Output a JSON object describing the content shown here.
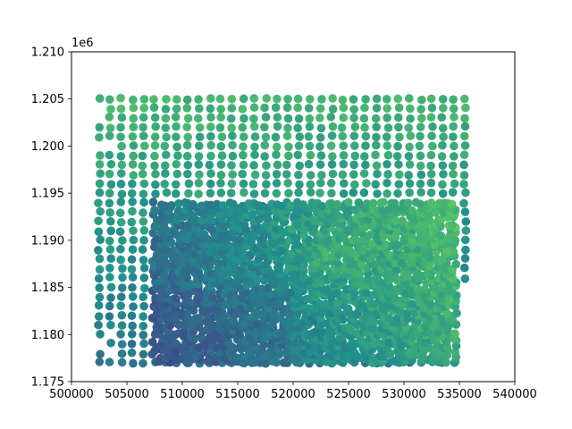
{
  "chart_data": {
    "type": "scatter",
    "title": "",
    "xlabel": "",
    "ylabel": "",
    "xlim": [
      500000,
      540000
    ],
    "ylim": [
      1175000,
      1210000
    ],
    "y_offset_label": "1e6",
    "x_ticks": [
      500000,
      505000,
      510000,
      515000,
      520000,
      525000,
      530000,
      535000,
      540000
    ],
    "x_tick_labels": [
      "500000",
      "505000",
      "510000",
      "515000",
      "520000",
      "525000",
      "530000",
      "535000",
      "540000"
    ],
    "y_ticks": [
      1175000,
      1180000,
      1185000,
      1190000,
      1195000,
      1200000,
      1205000,
      1210000
    ],
    "y_tick_labels": [
      "1.175",
      "1.180",
      "1.185",
      "1.190",
      "1.195",
      "1.200",
      "1.205",
      "1.210"
    ],
    "grid": false,
    "colormap": "viridis (teal–green range)",
    "colors": {
      "low": "#3b5a8c",
      "mid": "#2a8a86",
      "high": "#4cb86a"
    },
    "series": [
      {
        "regions": [
          {
            "x_range": [
              502500,
              535500
            ],
            "y_range": [
              1177000,
              1205000
            ],
            "spacing": 1000,
            "description_value_range": [
              0.45,
              0.75
            ]
          },
          {
            "x_range": [
              507000,
              535000
            ],
            "y_range": [
              1177000,
              1194500
            ],
            "spacing": 600,
            "description_value_range": [
              0.3,
              0.7
            ]
          }
        ]
      }
    ]
  }
}
